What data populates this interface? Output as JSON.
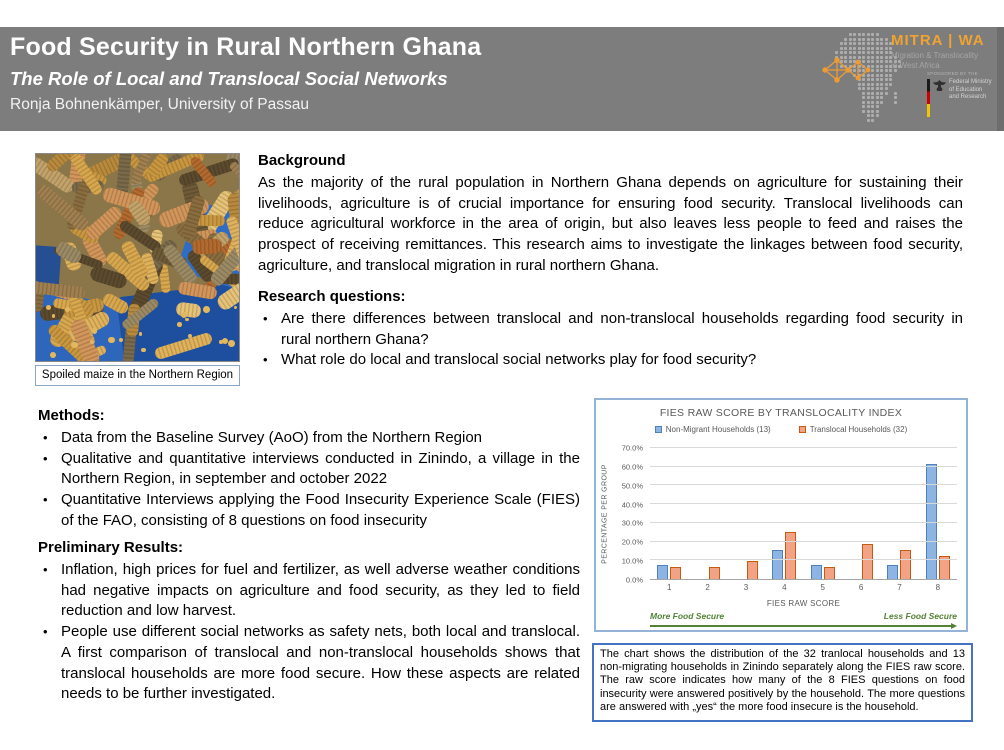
{
  "header": {
    "title": "Food Security in Rural Northern Ghana",
    "subtitle": "The Role of Local and Translocal Social Networks",
    "author": "Ronja Bohnenkämper, University of Passau",
    "logo": {
      "name": "MITRA | WA",
      "tagline_line1": "Migration & Translocality",
      "tagline_line2": "in West Africa",
      "accent_color": "#F0A330"
    },
    "ministry": {
      "sponsored_line": "SPONSORED BY THE",
      "name_line1": "Federal Ministry",
      "name_line2": "of Education",
      "name_line3": "and Research"
    }
  },
  "photo": {
    "caption": "Spoiled maize in the Northern Region"
  },
  "background": {
    "heading": "Background",
    "text": "As the majority of the rural population in Northern Ghana depends on agriculture for sustaining their livelihoods, agriculture is of crucial importance for ensuring food security. Translocal livelihoods can reduce agricultural workforce in the area of origin, but also leaves less people to feed and raises the prospect of receiving remittances. This research aims to  investigate the linkages between food security, agriculture, and translocal migration in rural northern Ghana."
  },
  "research_questions": {
    "heading": "Research questions:",
    "items": [
      "Are there differences between translocal and non-translocal households regarding food security in rural northern Ghana?",
      "What role do local and translocal social networks play for food security?"
    ]
  },
  "methods": {
    "heading": "Methods:",
    "items": [
      "Data from the Baseline Survey (AoO) from the Northern Region",
      "Qualitative and quantitative interviews conducted in Zinindo, a village in the Northern Region, in september and october 2022",
      "Quantitative Interviews applying the Food Insecurity Experience Scale (FIES) of the FAO, consisting of 8 questions on food insecurity"
    ]
  },
  "results": {
    "heading": "Preliminary Results:",
    "items": [
      "Inflation, high prices for fuel and fertilizer, as well adverse weather conditions had negative impacts on agriculture and food security, as they led to field reduction and low harvest.",
      "People use different social networks as safety nets, both local and translocal. A first comparison of translocal and non-translocal households shows that translocal households are more food secure. How these aspects are related needs to be further investigated."
    ]
  },
  "chart_data": {
    "type": "bar",
    "title": "FIES RAW SCORE BY TRANSLOCALITY INDEX",
    "categories": [
      "1",
      "2",
      "3",
      "4",
      "5",
      "6",
      "7",
      "8"
    ],
    "series": [
      {
        "name": "Non-Migrant Households (13)",
        "values": [
          7.7,
          0,
          0,
          15.4,
          7.7,
          0,
          7.7,
          61.5
        ],
        "fill": "#8EB4E3",
        "border": "#4F81BD"
      },
      {
        "name": "Translocal Households (32)",
        "values": [
          6.3,
          6.3,
          9.4,
          25.0,
          6.3,
          18.8,
          15.6,
          12.5
        ],
        "fill": "#F2A285",
        "border": "#C55A11"
      }
    ],
    "xlabel": "FIES RAW SCORE",
    "ylabel": "PERCENTAGE PER GROUP",
    "ylim": [
      0,
      70
    ],
    "ytick_step": 10,
    "ytick_labels": [
      "0.0%",
      "10.0%",
      "20.0%",
      "30.0%",
      "40.0%",
      "50.0%",
      "60.0%",
      "70.0%"
    ],
    "grid": true,
    "legend_position": "top",
    "annotations": {
      "left": "More Food Secure",
      "right": "Less Food Secure"
    }
  },
  "chart_caption": "The chart shows the distribution of the 32 tranlocal households and 13 non-migrating households in Zinindo separately along the FIES raw score. The raw score indicates how many of the 8 FIES questions on food insecurity were answered positively by the household. The more questions are answered with „yes“ the more food insecure is the household."
}
